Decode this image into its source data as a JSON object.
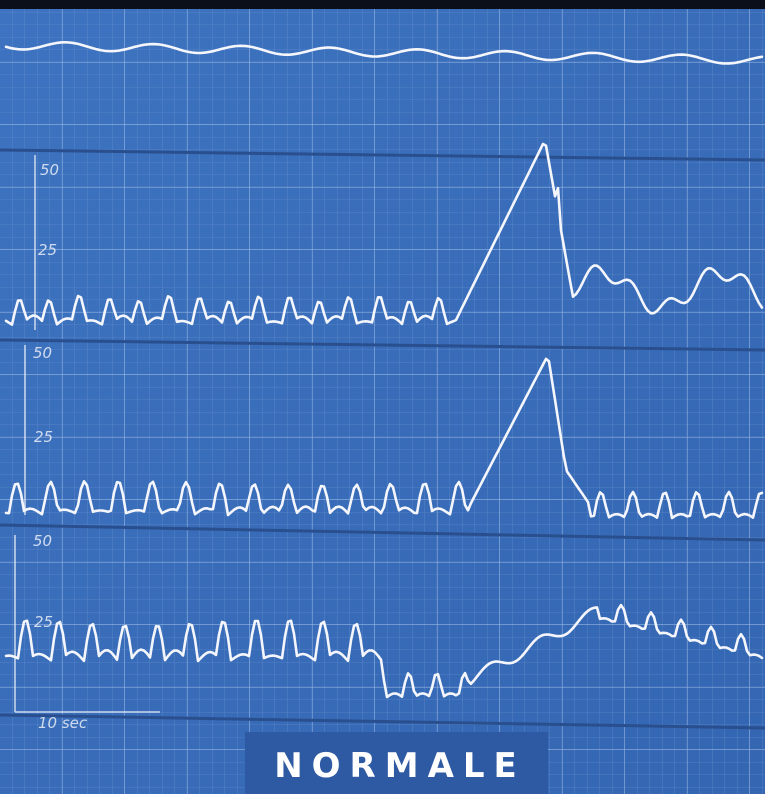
{
  "panels": [
    {
      "scale_top": "50",
      "scale_mid": "25"
    },
    {
      "scale_top": "50",
      "scale_mid": "25"
    },
    {
      "scale_top": "50",
      "scale_mid": "25"
    }
  ],
  "time_scale": "10 sec",
  "caption": "NORMALE"
}
